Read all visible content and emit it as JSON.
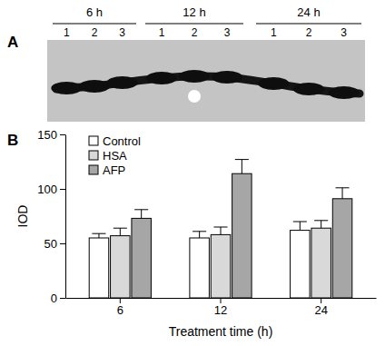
{
  "panel_a": {
    "panel_label": "A",
    "groups": [
      {
        "label": "6 h",
        "lanes": [
          "1",
          "2",
          "3"
        ]
      },
      {
        "label": "12 h",
        "lanes": [
          "1",
          "2",
          "3"
        ]
      },
      {
        "label": "24 h",
        "lanes": [
          "1",
          "2",
          "3"
        ]
      }
    ]
  },
  "chart_data": {
    "type": "bar",
    "panel_label": "B",
    "categories": [
      "6",
      "12",
      "24"
    ],
    "x_label": "Treatment time (h)",
    "y_label": "IOD",
    "ylim": [
      0,
      150
    ],
    "yticks": [
      0,
      50,
      100,
      150
    ],
    "legend": "upper left",
    "series": [
      {
        "name": "Control",
        "color": "#ffffff",
        "values": [
          55,
          55,
          62
        ],
        "errors": [
          4,
          6,
          8
        ]
      },
      {
        "name": "HSA",
        "color": "#d9d9d9",
        "values": [
          57,
          58,
          64
        ],
        "errors": [
          7,
          7,
          7
        ]
      },
      {
        "name": "AFP",
        "color": "#a6a6a6",
        "values": [
          73,
          114,
          91
        ],
        "errors": [
          8,
          13,
          10
        ]
      }
    ]
  }
}
